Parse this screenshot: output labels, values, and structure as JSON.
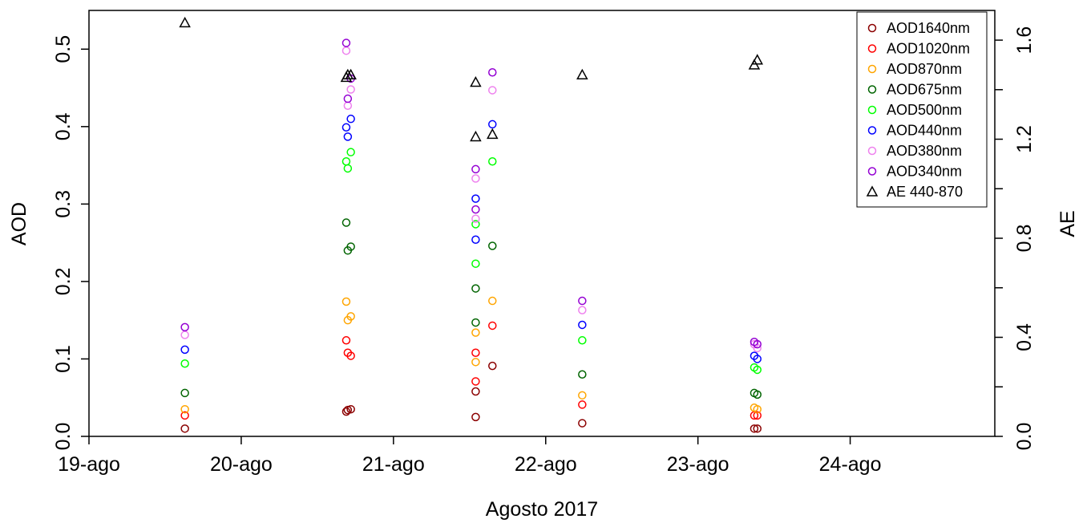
{
  "chart_data": {
    "type": "scatter",
    "xlabel": "Agosto 2017",
    "ylabel": "AOD",
    "y2label": "AE",
    "x_ticks": [
      "19-ago",
      "20-ago",
      "21-ago",
      "22-ago",
      "23-ago",
      "24-ago"
    ],
    "xlim": [
      19.0,
      24.95
    ],
    "ylim": [
      0,
      0.55
    ],
    "y_ticks": [
      "0.0",
      "0.1",
      "0.2",
      "0.3",
      "0.4",
      "0.5"
    ],
    "y_tick_values": [
      0,
      0.1,
      0.2,
      0.3,
      0.4,
      0.5
    ],
    "y2lim": [
      0,
      1.72
    ],
    "y2_ticks": [
      "0.0",
      "0.4",
      "0.8",
      "1.2",
      "1.6"
    ],
    "y2_tick_values": [
      0,
      0.4,
      0.8,
      1.2,
      1.6
    ],
    "y2_minor_ticks": [
      0.2,
      0.6,
      1.0,
      1.4
    ],
    "grid": false,
    "legend_position": "top-right",
    "x": [
      19.63,
      20.69,
      20.7,
      20.72,
      21.54,
      21.54,
      21.65,
      22.24,
      23.37,
      23.39
    ],
    "series": [
      {
        "name": "AOD1640nm",
        "color": "#8b0000",
        "marker": "circle",
        "axis": "left",
        "values": [
          0.01,
          0.032,
          0.034,
          0.035,
          0.025,
          0.058,
          0.091,
          0.017,
          0.01,
          0.01
        ]
      },
      {
        "name": "AOD1020nm",
        "color": "#ff0000",
        "marker": "circle",
        "axis": "left",
        "values": [
          0.027,
          0.124,
          0.108,
          0.104,
          0.071,
          0.108,
          0.143,
          0.041,
          0.027,
          0.027
        ]
      },
      {
        "name": "AOD870nm",
        "color": "#ffa500",
        "marker": "circle",
        "axis": "left",
        "values": [
          0.035,
          0.174,
          0.15,
          0.155,
          0.096,
          0.134,
          0.175,
          0.053,
          0.037,
          0.035
        ]
      },
      {
        "name": "AOD675nm",
        "color": "#006400",
        "marker": "circle",
        "axis": "left",
        "values": [
          0.056,
          0.276,
          0.24,
          0.245,
          0.147,
          0.191,
          0.246,
          0.08,
          0.056,
          0.054
        ]
      },
      {
        "name": "AOD500nm",
        "color": "#00ff00",
        "marker": "circle",
        "axis": "left",
        "values": [
          0.094,
          0.355,
          0.346,
          0.367,
          0.223,
          0.274,
          0.355,
          0.124,
          0.089,
          0.086
        ]
      },
      {
        "name": "AOD440nm",
        "color": "#0000ff",
        "marker": "circle",
        "axis": "left",
        "values": [
          0.112,
          0.399,
          0.387,
          0.41,
          0.254,
          0.307,
          0.403,
          0.144,
          0.104,
          0.1
        ]
      },
      {
        "name": "AOD380nm",
        "color": "#ee82ee",
        "marker": "circle",
        "axis": "left",
        "values": [
          0.131,
          0.498,
          0.427,
          0.448,
          0.281,
          0.333,
          0.447,
          0.163,
          0.119,
          0.114
        ]
      },
      {
        "name": "AOD340nm",
        "color": "#9400d3",
        "marker": "circle",
        "axis": "left",
        "values": [
          0.141,
          0.508,
          0.436,
          0.462,
          0.293,
          0.345,
          0.47,
          0.175,
          0.122,
          0.119
        ]
      },
      {
        "name": "AE 440-870",
        "color": "#000000",
        "marker": "triangle",
        "axis": "right",
        "values": [
          1.67,
          1.45,
          1.46,
          1.46,
          1.43,
          1.21,
          1.22,
          1.46,
          1.5,
          1.52
        ]
      }
    ]
  }
}
